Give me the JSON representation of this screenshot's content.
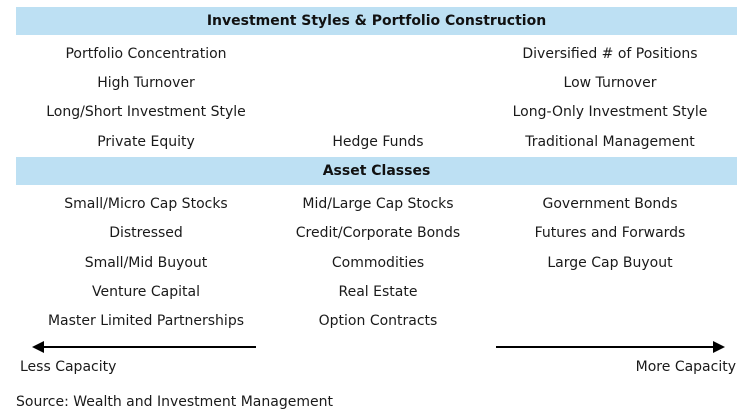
{
  "header_styles": "Investment Styles & Portfolio Construction",
  "header_assets": "Asset Classes",
  "styles": {
    "left": [
      "Portfolio Concentration",
      "High Turnover",
      "Long/Short Investment Style",
      "Private Equity"
    ],
    "center": [
      "Hedge Funds"
    ],
    "right": [
      "Diversified # of Positions",
      "Low Turnover",
      "Long-Only Investment Style",
      "Traditional Management"
    ]
  },
  "assets": {
    "left": [
      "Small/Micro Cap Stocks",
      "Distressed",
      "Small/Mid Buyout",
      "Venture Capital",
      "Master Limited Partnerships"
    ],
    "center": [
      "Mid/Large Cap Stocks",
      "Credit/Corporate Bonds",
      "Commodities",
      "Real Estate",
      "Option Contracts"
    ],
    "right": [
      "Government Bonds",
      "Futures and Forwards",
      "Large Cap Buyout"
    ]
  },
  "scale": {
    "left_label": "Less Capacity",
    "right_label": "More Capacity"
  },
  "source": "Source: Wealth and Investment Management",
  "colors": {
    "band": "#bde0f3",
    "text": "#1a1a1a",
    "arrow": "#000000"
  }
}
